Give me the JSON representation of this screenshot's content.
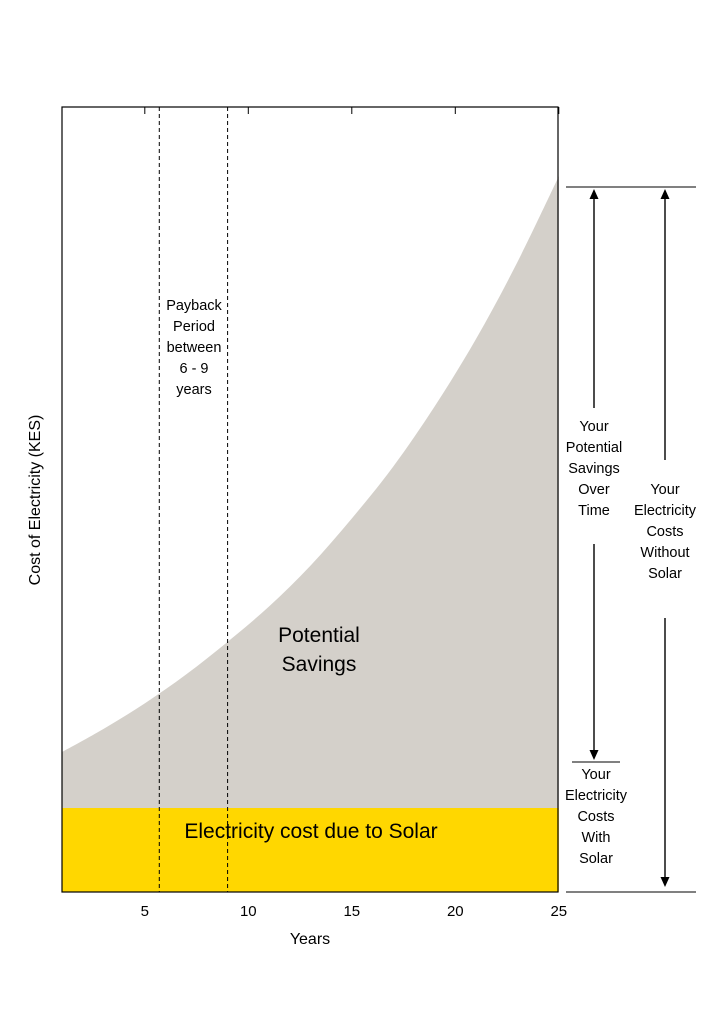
{
  "chart_data": {
    "type": "area",
    "xlabel": "Years",
    "ylabel": "Cost of Electricity (KES)",
    "x_ticks": [
      5,
      10,
      15,
      20,
      25
    ],
    "xlim": [
      1,
      25
    ],
    "y_ticks_shown": false,
    "grid": false,
    "series": [
      {
        "name": "Electricity cost due to Solar",
        "color": "#FFD700",
        "x": [
          1,
          25
        ],
        "y": [
          0.3,
          0.3
        ]
      },
      {
        "name": "Potential Savings",
        "color": "#D4D0CA",
        "x": [
          1,
          3,
          5,
          7,
          9,
          11,
          13,
          15,
          17,
          19,
          21,
          23,
          25
        ],
        "y": [
          0.5,
          0.5823,
          0.6737,
          0.7772,
          0.8935,
          1.0197,
          1.1654,
          1.3341,
          1.5193,
          1.7339,
          1.9748,
          2.2495,
          2.5559
        ]
      }
    ],
    "reference_lines": [
      {
        "x": 5.7,
        "style": "dashed"
      },
      {
        "x": 9.0,
        "style": "dashed"
      }
    ],
    "annotations": {
      "payback": [
        "Payback",
        "Period",
        "between",
        "6 - 9",
        "years"
      ],
      "potential_savings": [
        "Potential",
        "Savings"
      ],
      "solar_band": "Electricity cost due to Solar",
      "savings_over_time": [
        "Your",
        "Potential",
        "Savings",
        "Over",
        "Time"
      ],
      "costs_with_solar": [
        "Your",
        "Electricity",
        "Costs",
        "With",
        "Solar"
      ],
      "costs_without_solar": [
        "Your",
        "Electricity",
        "Costs",
        "Without",
        "Solar"
      ]
    }
  }
}
